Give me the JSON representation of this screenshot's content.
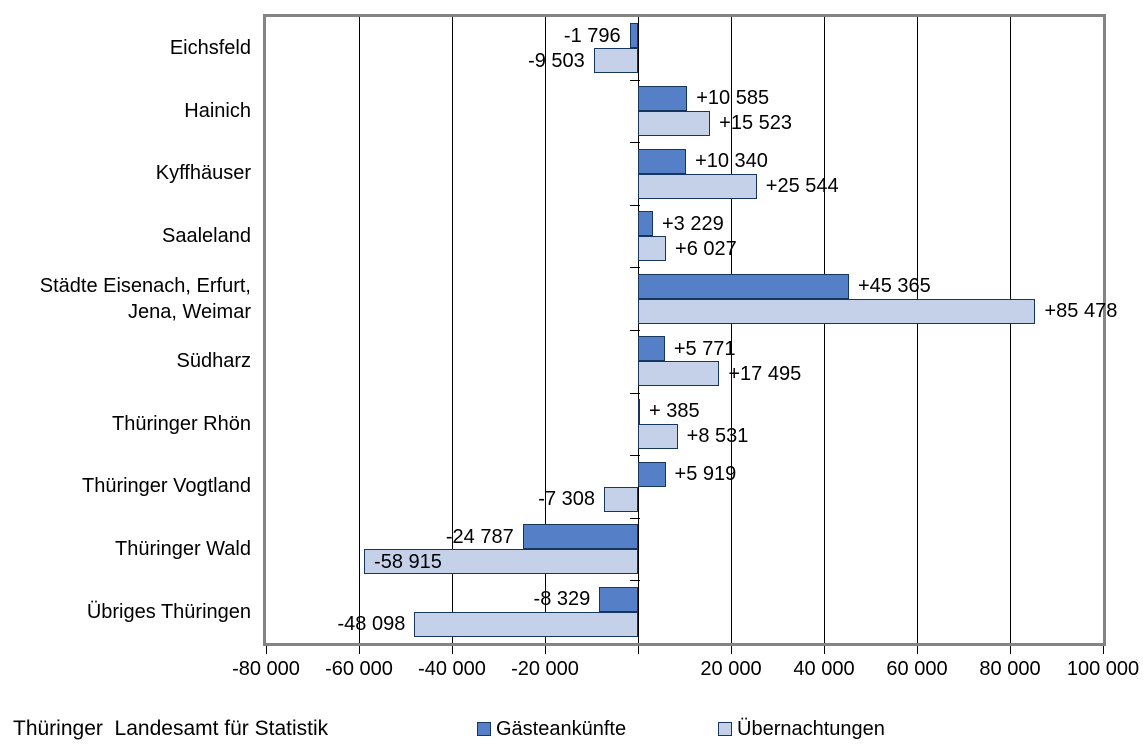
{
  "chart_data": {
    "type": "bar",
    "orientation": "horizontal",
    "title": "",
    "xlabel": "",
    "ylabel": "",
    "xlim": [
      -80000,
      100000
    ],
    "grid": true,
    "legend_position": "bottom",
    "categories": [
      "Eichsfeld",
      "Hainich",
      "Kyffhäuser",
      "Saaleland",
      "Städte Eisenach, Erfurt, Jena, Weimar",
      "Südharz",
      "Thüringer Rhön",
      "Thüringer Vogtland",
      "Thüringer Wald",
      "Übriges Thüringen"
    ],
    "series": [
      {
        "name": "Gästeankünfte",
        "color": "#5580C8",
        "values": [
          -1796,
          10585,
          10340,
          3229,
          45365,
          5771,
          385,
          5919,
          -24787,
          -8329
        ],
        "labels": [
          "-1 796",
          "+10 585",
          "+10 340",
          "+3 229",
          "+45 365",
          "+5 771",
          "+ 385",
          "+5 919",
          "-24 787",
          "-8 329"
        ],
        "label_inside": [
          false,
          false,
          false,
          false,
          false,
          false,
          false,
          false,
          false,
          false
        ]
      },
      {
        "name": "Übernachtungen",
        "color": "#C4D1E8",
        "values": [
          -9503,
          15523,
          25544,
          6027,
          85478,
          17495,
          8531,
          -7308,
          -58915,
          -48098
        ],
        "labels": [
          "-9 503",
          "+15 523",
          "+25 544",
          "+6 027",
          "+85 478",
          "+17 495",
          "+8 531",
          "-7 308",
          "-58 915",
          "-48 098"
        ],
        "label_inside": [
          false,
          false,
          false,
          false,
          false,
          false,
          false,
          false,
          true,
          false
        ]
      }
    ],
    "x_ticks": [
      {
        "value": -80000,
        "label": "-80 000"
      },
      {
        "value": -60000,
        "label": "-60 000"
      },
      {
        "value": -40000,
        "label": "-40 000"
      },
      {
        "value": -20000,
        "label": "-20 000"
      },
      {
        "value": 0,
        "label": ""
      },
      {
        "value": 20000,
        "label": "20 000"
      },
      {
        "value": 40000,
        "label": "40 000"
      },
      {
        "value": 60000,
        "label": "60 000"
      },
      {
        "value": 80000,
        "label": "80 000"
      },
      {
        "value": 100000,
        "label": "100 000"
      }
    ]
  },
  "legend": {
    "items": [
      {
        "label": "Gästeankünfte",
        "color": "#5580C8"
      },
      {
        "label": "Übernachtungen",
        "color": "#C4D1E8"
      }
    ]
  },
  "footer": {
    "source": "Thüringer  Landesamt für Statistik"
  },
  "colors": {
    "plot_border": "#848484",
    "bar_border": "#17365D",
    "gridline": "#000000",
    "background": "#FFFFFF"
  }
}
